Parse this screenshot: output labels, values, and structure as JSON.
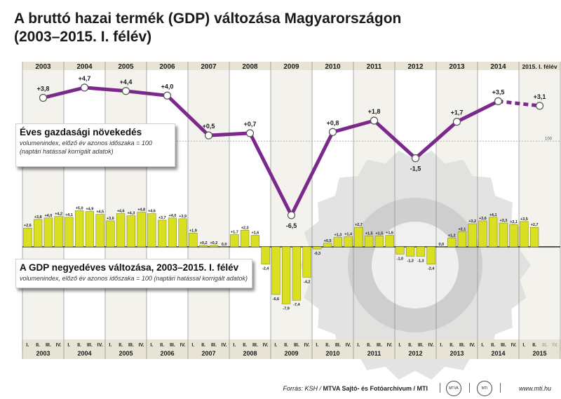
{
  "title_line1": "A bruttó hazai termék (GDP) változása Magyarországon",
  "title_line2": "(2003–2015. I. félév)",
  "annual_box": {
    "title": "Éves gazdasági növekedés",
    "subtitle1": "volumenindex, előző év azonos időszaka = 100",
    "subtitle2": "(naptári hatással korrigált adatok)"
  },
  "quarterly_box": {
    "title": "A GDP negyedéves változása, 2003–2015. I. félév",
    "subtitle": "volumenindex, előző év azonos időszaka = 100 (naptári hatással korrigált adatok)"
  },
  "footer": {
    "source_prefix": "Forrás: KSH /",
    "source_agency": "MTVA Sajtó- és Fotóarchívum / MTI",
    "logo1": "MTVA",
    "logo2": "MTI",
    "website": "www.mti.hu"
  },
  "chart_data": [
    {
      "type": "line",
      "title": "Éves gazdasági növekedés",
      "categories": [
        "2003",
        "2004",
        "2005",
        "2006",
        "2007",
        "2008",
        "2009",
        "2010",
        "2011",
        "2012",
        "2013",
        "2014",
        "2015. I. félév"
      ],
      "values": [
        3.8,
        4.7,
        4.4,
        4.0,
        0.5,
        0.7,
        -6.5,
        0.8,
        1.8,
        -1.5,
        1.7,
        3.5,
        3.1
      ],
      "labels": [
        "+3,8",
        "+4,7",
        "+4,4",
        "+4,0",
        "+0,5",
        "+0,7",
        "-6,5",
        "+0,8",
        "+1,8",
        "-1,5",
        "+1,7",
        "+3,5",
        "+3,1"
      ],
      "reference_line": {
        "value": 0,
        "label": "100"
      },
      "last_segment_dashed": true,
      "color": "#7b2a8c"
    },
    {
      "type": "bar",
      "title": "A GDP negyedéves változása, 2003–2015. I. félév",
      "quarter_labels": [
        "I.",
        "II.",
        "III.",
        "IV."
      ],
      "years": [
        "2003",
        "2004",
        "2005",
        "2006",
        "2007",
        "2008",
        "2009",
        "2010",
        "2011",
        "2012",
        "2013",
        "2014",
        "2015"
      ],
      "values": [
        2.6,
        3.8,
        4.0,
        4.2,
        4.1,
        5.0,
        4.9,
        4.5,
        3.6,
        4.6,
        4.3,
        4.8,
        4.6,
        3.7,
        4.0,
        3.9,
        1.9,
        0.2,
        0.2,
        0.0,
        1.7,
        2.3,
        1.6,
        -2.4,
        -6.6,
        -7.9,
        -7.4,
        -4.2,
        -0.3,
        0.5,
        1.3,
        1.4,
        2.7,
        1.5,
        1.5,
        1.6,
        -1.0,
        -1.3,
        -1.3,
        -2.4,
        0.0,
        1.2,
        2.1,
        3.2,
        3.6,
        4.1,
        3.3,
        3.1,
        3.5,
        2.7
      ],
      "labels": [
        "+2,6",
        "+3,8",
        "+4,0",
        "+4,2",
        "+4,1",
        "+5,0",
        "+4,9",
        "+4,5",
        "+3,6",
        "+4,6",
        "+4,3",
        "+4,8",
        "+4,6",
        "+3,7",
        "+4,0",
        "+3,9",
        "+1,9",
        "+0,2",
        "+0,2",
        "0,0",
        "+1,7",
        "+2,3",
        "+1,6",
        "-2,4",
        "-6,6",
        "-7,9",
        "-7,4",
        "-4,2",
        "-0,3",
        "+0,5",
        "+1,3",
        "+1,4",
        "+2,7",
        "+1,5",
        "+1,5",
        "+1,6",
        "-1,0",
        "-1,3",
        "-1,3",
        "-2,4",
        "0,0",
        "+1,2",
        "+2,1",
        "+3,2",
        "+3,6",
        "+4,1",
        "+3,3",
        "+3,1",
        "+3,5",
        "+2,7"
      ],
      "color": "#d9e021",
      "future_quarters_grey": [
        "III.",
        "IV."
      ]
    }
  ]
}
